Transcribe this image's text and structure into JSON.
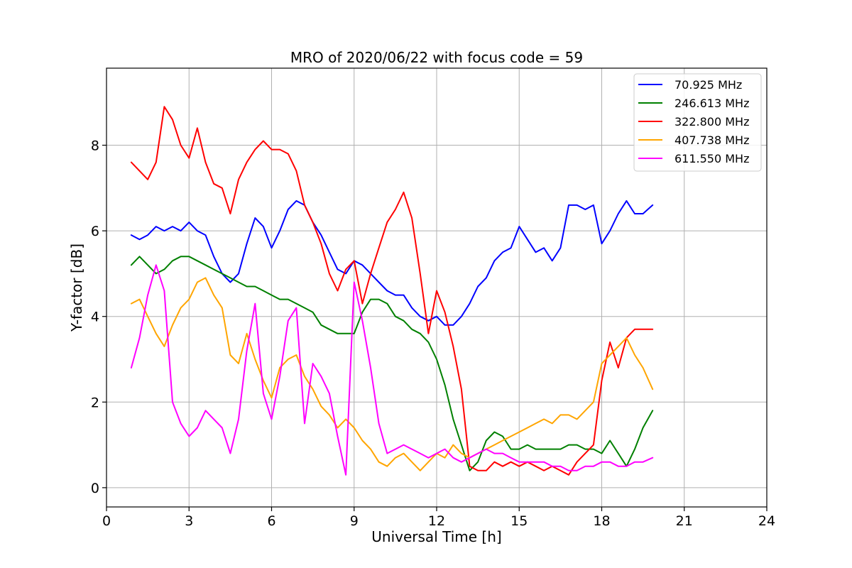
{
  "chart_data": {
    "type": "line",
    "title": "MRO of 2020/06/22 with focus code = 59",
    "xlabel": "Universal Time [h]",
    "ylabel": "Y-factor [dB]",
    "xlim": [
      0,
      24
    ],
    "ylim": [
      -0.45,
      9.8
    ],
    "xticks": [
      0,
      3,
      6,
      9,
      12,
      15,
      18,
      21,
      24
    ],
    "yticks": [
      0,
      2,
      4,
      6,
      8
    ],
    "xtick_labels": [
      "0",
      "3",
      "6",
      "9",
      "12",
      "15",
      "18",
      "21",
      "24"
    ],
    "ytick_labels": [
      "0",
      "2",
      "4",
      "6",
      "8"
    ],
    "grid": true,
    "legend_position": "top-right",
    "series": [
      {
        "name": " 70.925 MHz",
        "color": "#0000ff",
        "x": [
          0.9,
          1.2,
          1.5,
          1.8,
          2.1,
          2.4,
          2.7,
          3.0,
          3.3,
          3.6,
          3.9,
          4.2,
          4.5,
          4.8,
          5.1,
          5.4,
          5.7,
          6.0,
          6.3,
          6.6,
          6.9,
          7.2,
          7.5,
          7.8,
          8.1,
          8.4,
          8.7,
          9.0,
          9.3,
          9.6,
          9.9,
          10.2,
          10.5,
          10.8,
          11.1,
          11.4,
          11.7,
          12.0,
          12.3,
          12.6,
          12.9,
          13.2,
          13.5,
          13.8,
          14.1,
          14.4,
          14.7,
          15.0,
          15.3,
          15.6,
          15.9,
          16.2,
          16.5,
          16.8,
          17.1,
          17.4,
          17.7,
          18.0,
          18.3,
          18.6,
          18.9,
          19.2,
          19.5,
          19.85
        ],
        "values": [
          5.9,
          5.8,
          5.9,
          6.1,
          6.0,
          6.1,
          6.0,
          6.2,
          6.0,
          5.9,
          5.4,
          5.0,
          4.8,
          5.0,
          5.7,
          6.3,
          6.1,
          5.6,
          6.0,
          6.5,
          6.7,
          6.6,
          6.2,
          5.9,
          5.5,
          5.1,
          5.0,
          5.3,
          5.2,
          5.0,
          4.8,
          4.6,
          4.5,
          4.5,
          4.2,
          4.0,
          3.9,
          4.0,
          3.8,
          3.8,
          4.0,
          4.3,
          4.7,
          4.9,
          5.3,
          5.5,
          5.6,
          6.1,
          5.8,
          5.5,
          5.6,
          5.3,
          5.6,
          6.6,
          6.6,
          6.5,
          6.6,
          5.7,
          6.0,
          6.4,
          6.7,
          6.4,
          6.4,
          6.6
        ]
      },
      {
        "name": "246.613 MHz",
        "color": "#008000",
        "x": [
          0.9,
          1.2,
          1.5,
          1.8,
          2.1,
          2.4,
          2.7,
          3.0,
          3.3,
          3.6,
          3.9,
          4.2,
          4.5,
          4.8,
          5.1,
          5.4,
          5.7,
          6.0,
          6.3,
          6.6,
          6.9,
          7.2,
          7.5,
          7.8,
          8.1,
          8.4,
          8.7,
          9.0,
          9.3,
          9.6,
          9.9,
          10.2,
          10.5,
          10.8,
          11.1,
          11.4,
          11.7,
          12.0,
          12.3,
          12.6,
          12.9,
          13.2,
          13.5,
          13.8,
          14.1,
          14.4,
          14.7,
          15.0,
          15.3,
          15.6,
          15.9,
          16.2,
          16.5,
          16.8,
          17.1,
          17.4,
          17.7,
          18.0,
          18.3,
          18.6,
          18.9,
          19.2,
          19.5,
          19.85
        ],
        "values": [
          5.2,
          5.4,
          5.2,
          5.0,
          5.1,
          5.3,
          5.4,
          5.4,
          5.3,
          5.2,
          5.1,
          5.0,
          4.9,
          4.8,
          4.7,
          4.7,
          4.6,
          4.5,
          4.4,
          4.4,
          4.3,
          4.2,
          4.1,
          3.8,
          3.7,
          3.6,
          3.6,
          3.6,
          4.1,
          4.4,
          4.4,
          4.3,
          4.0,
          3.9,
          3.7,
          3.6,
          3.4,
          3.0,
          2.4,
          1.6,
          1.0,
          0.4,
          0.6,
          1.1,
          1.3,
          1.2,
          0.9,
          0.9,
          1.0,
          0.9,
          0.9,
          0.9,
          0.9,
          1.0,
          1.0,
          0.9,
          0.9,
          0.8,
          1.1,
          0.8,
          0.5,
          0.9,
          1.4,
          1.8
        ]
      },
      {
        "name": "322.800 MHz",
        "color": "#ff0000",
        "x": [
          0.9,
          1.2,
          1.5,
          1.8,
          2.1,
          2.4,
          2.7,
          3.0,
          3.3,
          3.6,
          3.9,
          4.2,
          4.5,
          4.8,
          5.1,
          5.4,
          5.7,
          6.0,
          6.3,
          6.6,
          6.9,
          7.2,
          7.5,
          7.8,
          8.1,
          8.4,
          8.7,
          9.0,
          9.3,
          9.6,
          9.9,
          10.2,
          10.5,
          10.8,
          11.1,
          11.4,
          11.7,
          12.0,
          12.3,
          12.6,
          12.9,
          13.2,
          13.5,
          13.8,
          14.1,
          14.4,
          14.7,
          15.0,
          15.3,
          15.6,
          15.9,
          16.2,
          16.5,
          16.8,
          17.1,
          17.4,
          17.7,
          18.0,
          18.3,
          18.6,
          18.9,
          19.2,
          19.5,
          19.85
        ],
        "values": [
          7.6,
          7.4,
          7.2,
          7.6,
          8.9,
          8.6,
          8.0,
          7.7,
          8.4,
          7.6,
          7.1,
          7.0,
          6.4,
          7.2,
          7.6,
          7.9,
          8.1,
          7.9,
          7.9,
          7.8,
          7.4,
          6.6,
          6.2,
          5.7,
          5.0,
          4.6,
          5.1,
          5.3,
          4.3,
          5.0,
          5.6,
          6.2,
          6.5,
          6.9,
          6.3,
          5.0,
          3.6,
          4.6,
          4.1,
          3.3,
          2.3,
          0.5,
          0.4,
          0.4,
          0.6,
          0.5,
          0.6,
          0.5,
          0.6,
          0.5,
          0.4,
          0.5,
          0.4,
          0.3,
          0.6,
          0.8,
          1.0,
          2.5,
          3.4,
          2.8,
          3.5,
          3.7,
          3.7,
          3.7
        ]
      },
      {
        "name": "407.738 MHz",
        "color": "#ffa500",
        "x": [
          0.9,
          1.2,
          1.5,
          1.8,
          2.1,
          2.4,
          2.7,
          3.0,
          3.3,
          3.6,
          3.9,
          4.2,
          4.5,
          4.8,
          5.1,
          5.4,
          5.7,
          6.0,
          6.3,
          6.6,
          6.9,
          7.2,
          7.5,
          7.8,
          8.1,
          8.4,
          8.7,
          9.0,
          9.3,
          9.6,
          9.9,
          10.2,
          10.5,
          10.8,
          11.1,
          11.4,
          11.7,
          12.0,
          12.3,
          12.6,
          12.9,
          13.2,
          13.5,
          13.8,
          14.1,
          14.4,
          14.7,
          15.0,
          15.3,
          15.6,
          15.9,
          16.2,
          16.5,
          16.8,
          17.1,
          17.4,
          17.7,
          18.0,
          18.3,
          18.6,
          18.9,
          19.2,
          19.5,
          19.85
        ],
        "values": [
          4.3,
          4.4,
          4.0,
          3.6,
          3.3,
          3.8,
          4.2,
          4.4,
          4.8,
          4.9,
          4.5,
          4.2,
          3.1,
          2.9,
          3.6,
          3.0,
          2.5,
          2.1,
          2.8,
          3.0,
          3.1,
          2.6,
          2.3,
          1.9,
          1.7,
          1.4,
          1.6,
          1.4,
          1.1,
          0.9,
          0.6,
          0.5,
          0.7,
          0.8,
          0.6,
          0.4,
          0.6,
          0.8,
          0.7,
          1.0,
          0.8,
          0.7,
          0.8,
          0.9,
          1.0,
          1.1,
          1.2,
          1.3,
          1.4,
          1.5,
          1.6,
          1.5,
          1.7,
          1.7,
          1.6,
          1.8,
          2.0,
          2.9,
          3.1,
          3.3,
          3.5,
          3.1,
          2.8,
          2.3
        ]
      },
      {
        "name": "611.550 MHz",
        "color": "#ff00ff",
        "x": [
          0.9,
          1.2,
          1.5,
          1.8,
          2.1,
          2.4,
          2.7,
          3.0,
          3.3,
          3.6,
          3.9,
          4.2,
          4.5,
          4.8,
          5.1,
          5.4,
          5.7,
          6.0,
          6.3,
          6.6,
          6.9,
          7.2,
          7.5,
          7.8,
          8.1,
          8.4,
          8.7,
          9.0,
          9.3,
          9.6,
          9.9,
          10.2,
          10.5,
          10.8,
          11.1,
          11.4,
          11.7,
          12.0,
          12.3,
          12.6,
          12.9,
          13.2,
          13.5,
          13.8,
          14.1,
          14.4,
          14.7,
          15.0,
          15.3,
          15.6,
          15.9,
          16.2,
          16.5,
          16.8,
          17.1,
          17.4,
          17.7,
          18.0,
          18.3,
          18.6,
          18.9,
          19.2,
          19.5,
          19.85
        ],
        "values": [
          2.8,
          3.5,
          4.5,
          5.2,
          4.6,
          2.0,
          1.5,
          1.2,
          1.4,
          1.8,
          1.6,
          1.4,
          0.8,
          1.6,
          3.2,
          4.3,
          2.2,
          1.6,
          2.6,
          3.9,
          4.2,
          1.5,
          2.9,
          2.6,
          2.2,
          1.2,
          0.3,
          4.8,
          3.9,
          2.8,
          1.5,
          0.8,
          0.9,
          1.0,
          0.9,
          0.8,
          0.7,
          0.8,
          0.9,
          0.7,
          0.6,
          0.7,
          0.8,
          0.9,
          0.8,
          0.8,
          0.7,
          0.6,
          0.6,
          0.6,
          0.6,
          0.5,
          0.5,
          0.4,
          0.4,
          0.5,
          0.5,
          0.6,
          0.6,
          0.5,
          0.5,
          0.6,
          0.6,
          0.7
        ]
      }
    ]
  }
}
